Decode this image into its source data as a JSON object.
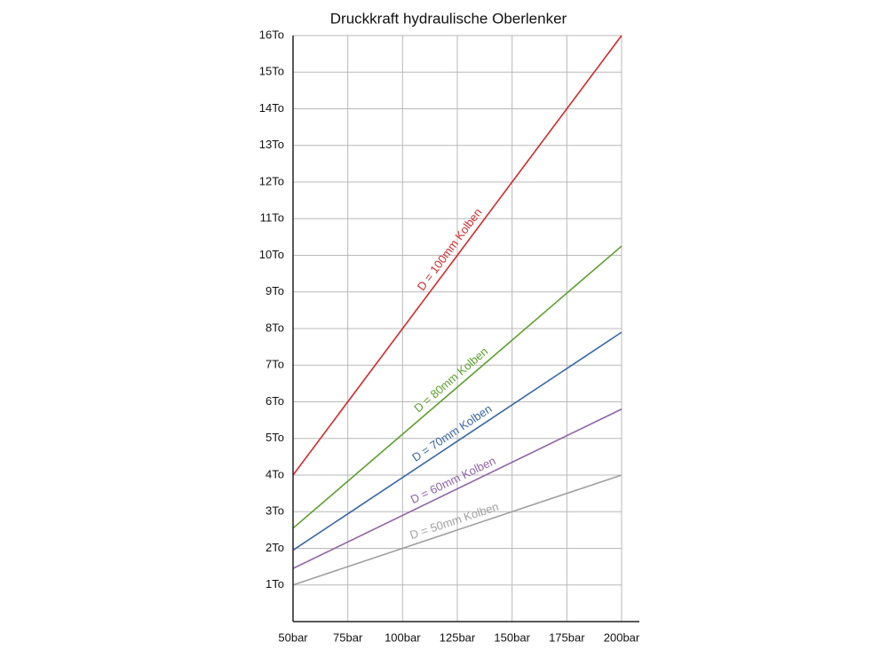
{
  "chart_data": {
    "type": "line",
    "title": "Druckkraft hydraulische Oberlenker",
    "x": [
      50,
      200
    ],
    "series": [
      {
        "name": "D = 100mm Kolben",
        "color": "#d42a2a",
        "values": [
          4,
          16
        ]
      },
      {
        "name": "D = 80mm Kolben",
        "color": "#5aa02c",
        "values": [
          2.55,
          10.25
        ]
      },
      {
        "name": "D = 70mm Kolben",
        "color": "#3a67a8",
        "values": [
          1.95,
          7.9
        ]
      },
      {
        "name": "D = 60mm Kolben",
        "color": "#8e63a8",
        "values": [
          1.45,
          5.8
        ]
      },
      {
        "name": "D = 50mm Kolben",
        "color": "#a0a0a0",
        "values": [
          1,
          4
        ]
      }
    ],
    "xlim": [
      50,
      200
    ],
    "xticks": [
      {
        "value": 50,
        "label": "50bar"
      },
      {
        "value": 75,
        "label": "75bar"
      },
      {
        "value": 100,
        "label": "100bar"
      },
      {
        "value": 125,
        "label": "125bar"
      },
      {
        "value": 150,
        "label": "150bar"
      },
      {
        "value": 175,
        "label": "175bar"
      },
      {
        "value": 200,
        "label": "200bar"
      }
    ],
    "ylim": [
      0,
      16
    ],
    "yticks": [
      {
        "value": 1,
        "label": "1To"
      },
      {
        "value": 2,
        "label": "2To"
      },
      {
        "value": 3,
        "label": "3To"
      },
      {
        "value": 4,
        "label": "4To"
      },
      {
        "value": 5,
        "label": "5To"
      },
      {
        "value": 6,
        "label": "6To"
      },
      {
        "value": 7,
        "label": "7To"
      },
      {
        "value": 8,
        "label": "8To"
      },
      {
        "value": 9,
        "label": "9To"
      },
      {
        "value": 10,
        "label": "10To"
      },
      {
        "value": 11,
        "label": "11To"
      },
      {
        "value": 12,
        "label": "12To"
      },
      {
        "value": 13,
        "label": "13To"
      },
      {
        "value": 14,
        "label": "14To"
      },
      {
        "value": 15,
        "label": "15To"
      },
      {
        "value": 16,
        "label": "16To"
      }
    ],
    "grid": true
  }
}
